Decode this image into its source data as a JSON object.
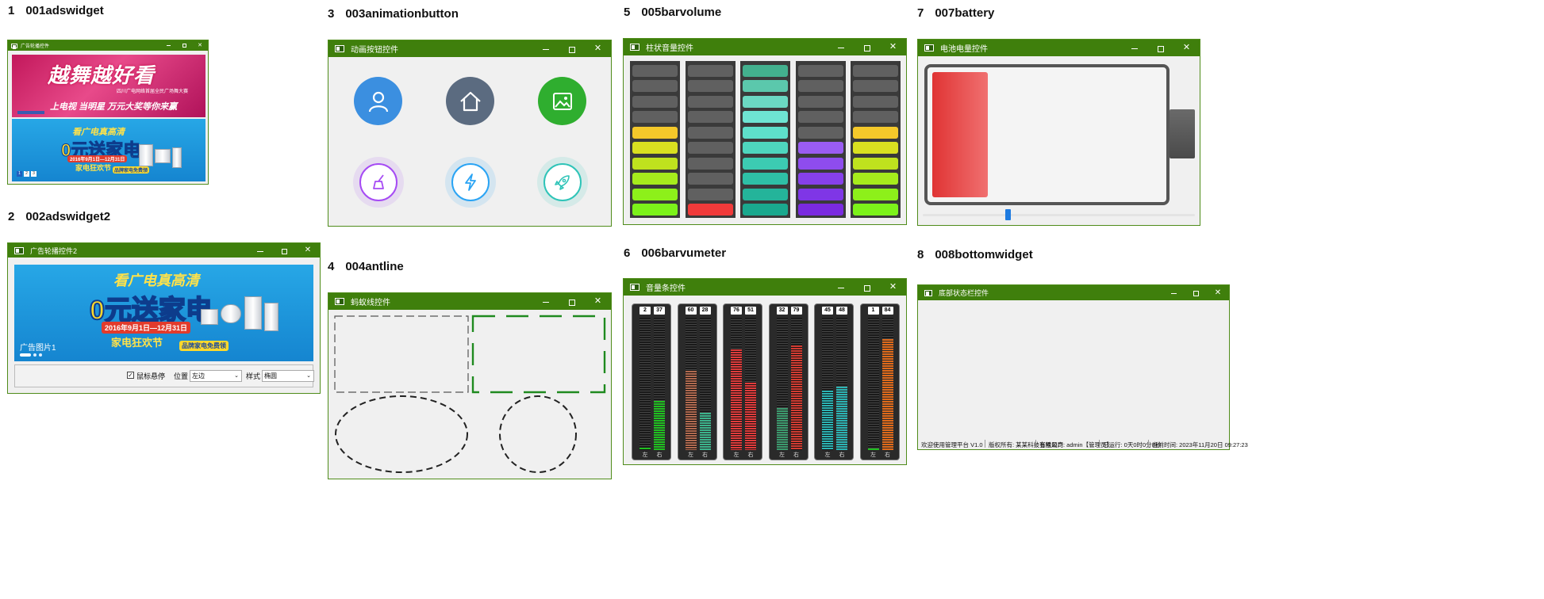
{
  "sections": [
    {
      "num": "1",
      "name": "001adswidget"
    },
    {
      "num": "2",
      "name": "002adswidget2"
    },
    {
      "num": "3",
      "name": "003animationbutton"
    },
    {
      "num": "4",
      "name": "004antline"
    },
    {
      "num": "5",
      "name": "005barvolume"
    },
    {
      "num": "6",
      "name": "006barvumeter"
    },
    {
      "num": "7",
      "name": "007battery"
    },
    {
      "num": "8",
      "name": "008bottomwidget"
    }
  ],
  "windows": {
    "ads1": {
      "title": "广告轮播控件"
    },
    "ads2": {
      "title": "广告轮播控件2"
    },
    "anim": {
      "title": "动画按钮控件"
    },
    "antline": {
      "title": "蚂蚁线控件"
    },
    "barvolume": {
      "title": "柱状音量控件"
    },
    "vumeter": {
      "title": "音量条控件"
    },
    "battery": {
      "title": "电池电量控件"
    },
    "bottom": {
      "title": "底部状态栏控件"
    }
  },
  "ads1": {
    "banner1_headline": "越舞越好看",
    "banner1_sub": "四川广电网络首届全民广场舞大赛",
    "banner1_slogan": "上电视  当明星  万元大奖等你来赢",
    "banner2_top": "看广电真高清",
    "banner2_big": "0元送家电",
    "banner2_date": "2016年9月1日—12月31日",
    "banner2_festival": "家电狂欢节",
    "banner2_tag": "品牌家电免费领",
    "page_numbers": [
      "1",
      "2",
      "3"
    ]
  },
  "ads2": {
    "banner_top": "看广电真高清",
    "banner_big": "0元送家电",
    "banner_date": "2016年9月1日—12月31日",
    "banner_festival": "家电狂欢节",
    "banner_tag": "品牌家电免费领",
    "caption": "广告图片1",
    "checkbox_label": "鼠标悬停",
    "checkbox_checked": true,
    "position_label": "位置",
    "position_value": "左边",
    "style_label": "样式",
    "style_value": "椭圆"
  },
  "anim_buttons": [
    {
      "icon": "user-icon",
      "color": "#3b8fe0"
    },
    {
      "icon": "home-icon",
      "color": "#5b6b80"
    },
    {
      "icon": "image-icon",
      "color": "#2fae2f"
    },
    {
      "icon": "broom-icon",
      "color": "#a64bf4"
    },
    {
      "icon": "lightning-icon",
      "color": "#2aa4f4"
    },
    {
      "icon": "rocket-icon",
      "color": "#2fc4b8"
    }
  ],
  "barvolume": {
    "segments": 10,
    "columns": [
      {
        "level": 6,
        "palette": "warm"
      },
      {
        "level": 1,
        "palette": "red"
      },
      {
        "level": 10,
        "palette": "teal"
      },
      {
        "level": 5,
        "palette": "purple"
      },
      {
        "level": 6,
        "palette": "warm"
      }
    ]
  },
  "vumeter": {
    "meters": [
      {
        "left": 2,
        "right": 37,
        "color": "#20c020",
        "footer_left": "左",
        "footer_right": "右"
      },
      {
        "left": 60,
        "right": 28,
        "color_left": "#b06a50",
        "color_right": "#3cb48c",
        "footer_left": "左",
        "footer_right": "右"
      },
      {
        "left": 76,
        "right": 51,
        "color": "#e03c3c",
        "footer_left": "左",
        "footer_right": "右"
      },
      {
        "left": 32,
        "right": 79,
        "color_left": "#3c9a6e",
        "color_right": "#d23c32",
        "footer_left": "左",
        "footer_right": "右"
      },
      {
        "left": 45,
        "right": 48,
        "color": "#2cb4b4",
        "footer_left": "左",
        "footer_right": "右"
      },
      {
        "left": 1,
        "right": 84,
        "color_left": "#20c020",
        "color_right": "#e06a1a",
        "footer_left": "左",
        "footer_right": "右"
      }
    ]
  },
  "battery": {
    "level_percent": 24,
    "fill_color": "#e03434"
  },
  "bottom_status": {
    "items": [
      "欢迎使用管理平台 V1.0",
      "版权所有: 某某科技有限公司",
      "当前用户: admin【管理员】",
      "已运行: 0天0时0分8秒",
      "当前时间: 2023年11月20日 09:27:23"
    ]
  }
}
